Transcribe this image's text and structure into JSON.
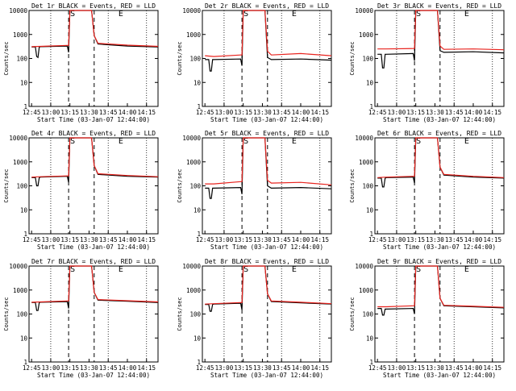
{
  "chart_data": [
    {
      "type": "line",
      "title": "Det 1r BLACK = Events, RED = LLD",
      "xlabel": "Start Time (03-Jan-07 12:44:00)",
      "ylabel": "Counts/sec",
      "xlim": [
        "12:43",
        "14:24"
      ],
      "ylim": [
        1,
        10000
      ],
      "yscale": "log",
      "x_ticks": [
        "12:45",
        "13:00",
        "13:15",
        "13:30",
        "13:45",
        "14:00",
        "14:15"
      ],
      "y_ticks": [
        "1",
        "10",
        "100",
        "1000",
        "10000"
      ],
      "markers": [
        "S",
        "E"
      ],
      "grid": "vertical dotted at 13:00, 13:45, 14:15",
      "vertical_dashed_lines": [
        "13:14",
        "13:34"
      ],
      "series": [
        {
          "name": "Events",
          "color": "#000000",
          "x": [
            "12:45",
            "12:48",
            "12:49",
            "12:50",
            "12:51",
            "12:52",
            "13:13",
            "13:14",
            "13:15",
            "13:19",
            "13:30",
            "13:32",
            "13:34",
            "13:37",
            "14:00",
            "14:24"
          ],
          "y": [
            300,
            300,
            120,
            110,
            300,
            310,
            330,
            180,
            10000,
            10000,
            10000,
            10000,
            900,
            400,
            330,
            300
          ]
        },
        {
          "name": "LLD",
          "color": "#e8231e",
          "x": [
            "12:45",
            "12:52",
            "13:13",
            "13:14",
            "13:15",
            "13:19",
            "13:30",
            "13:32",
            "13:34",
            "13:37",
            "14:00",
            "14:24"
          ],
          "y": [
            310,
            320,
            350,
            350,
            10000,
            10000,
            10000,
            10000,
            900,
            430,
            360,
            320
          ]
        }
      ]
    },
    {
      "type": "line",
      "title": "Det 2r BLACK = Events, RED = LLD",
      "xlabel": "Start Time (03-Jan-07 12:44:00)",
      "ylabel": "Counts/sec",
      "xlim": [
        "12:43",
        "14:24"
      ],
      "ylim": [
        1,
        10000
      ],
      "yscale": "log",
      "x_ticks": [
        "12:45",
        "13:00",
        "13:15",
        "13:30",
        "13:45",
        "14:00",
        "14:15"
      ],
      "y_ticks": [
        "1",
        "10",
        "100",
        "1000",
        "10000"
      ],
      "markers": [
        "S",
        "E"
      ],
      "grid": "vertical dotted at 13:00, 13:45, 14:15",
      "vertical_dashed_lines": [
        "13:14",
        "13:34"
      ],
      "series": [
        {
          "name": "Events",
          "color": "#000000",
          "x": [
            "12:45",
            "12:48",
            "12:49",
            "12:50",
            "12:51",
            "12:52",
            "13:13",
            "13:14",
            "13:15",
            "13:19",
            "13:30",
            "13:32",
            "13:34",
            "13:37",
            "14:00",
            "14:24"
          ],
          "y": [
            90,
            90,
            30,
            30,
            90,
            90,
            95,
            50,
            10000,
            10000,
            10000,
            10000,
            110,
            90,
            95,
            85
          ]
        },
        {
          "name": "LLD",
          "color": "#e8231e",
          "x": [
            "12:45",
            "12:52",
            "13:13",
            "13:14",
            "13:15",
            "13:19",
            "13:30",
            "13:32",
            "13:34",
            "13:37",
            "14:00",
            "14:24"
          ],
          "y": [
            130,
            120,
            140,
            140,
            10000,
            10000,
            10000,
            10000,
            200,
            140,
            160,
            130
          ]
        }
      ]
    },
    {
      "type": "line",
      "title": "Det 3r BLACK = Events, RED = LLD",
      "xlabel": "Start Time (03-Jan-07 12:44:00)",
      "ylabel": "Counts/sec",
      "xlim": [
        "12:43",
        "14:24"
      ],
      "ylim": [
        1,
        10000
      ],
      "yscale": "log",
      "x_ticks": [
        "12:45",
        "13:00",
        "13:15",
        "13:30",
        "13:45",
        "14:00",
        "14:15"
      ],
      "y_ticks": [
        "1",
        "10",
        "100",
        "1000",
        "10000"
      ],
      "markers": [
        "S",
        "E"
      ],
      "grid": "vertical dotted at 13:00, 13:45, 14:15",
      "vertical_dashed_lines": [
        "13:14",
        "13:34"
      ],
      "series": [
        {
          "name": "Events",
          "color": "#000000",
          "x": [
            "12:45",
            "12:48",
            "12:49",
            "12:50",
            "12:51",
            "12:52",
            "13:13",
            "13:14",
            "13:15",
            "13:19",
            "13:30",
            "13:32",
            "13:34",
            "13:37",
            "14:00",
            "14:24"
          ],
          "y": [
            150,
            150,
            40,
            40,
            150,
            150,
            160,
            80,
            10000,
            10000,
            10000,
            10000,
            210,
            180,
            190,
            170
          ]
        },
        {
          "name": "LLD",
          "color": "#e8231e",
          "x": [
            "12:45",
            "12:52",
            "13:13",
            "13:14",
            "13:15",
            "13:19",
            "13:30",
            "13:32",
            "13:34",
            "13:37",
            "14:00",
            "14:24"
          ],
          "y": [
            250,
            250,
            260,
            260,
            10000,
            10000,
            10000,
            10000,
            330,
            240,
            250,
            230
          ]
        }
      ]
    },
    {
      "type": "line",
      "title": "Det 4r BLACK = Events, RED = LLD",
      "xlabel": "Start Time (03-Jan-07 12:44:00)",
      "ylabel": "Counts/sec",
      "xlim": [
        "12:43",
        "14:24"
      ],
      "ylim": [
        1,
        10000
      ],
      "yscale": "log",
      "x_ticks": [
        "12:45",
        "13:00",
        "13:15",
        "13:30",
        "13:45",
        "14:00",
        "14:15"
      ],
      "y_ticks": [
        "1",
        "10",
        "100",
        "1000",
        "10000"
      ],
      "markers": [
        "S",
        "E"
      ],
      "grid": "vertical dotted at 13:00, 13:45, 14:15",
      "vertical_dashed_lines": [
        "13:14",
        "13:34"
      ],
      "series": [
        {
          "name": "Events",
          "color": "#000000",
          "x": [
            "12:45",
            "12:48",
            "12:49",
            "12:50",
            "12:51",
            "12:52",
            "13:13",
            "13:14",
            "13:15",
            "13:19",
            "13:30",
            "13:32",
            "13:34",
            "13:37",
            "14:00",
            "14:24"
          ],
          "y": [
            220,
            220,
            100,
            100,
            220,
            230,
            250,
            140,
            10000,
            10000,
            10000,
            10000,
            700,
            300,
            250,
            230
          ]
        },
        {
          "name": "LLD",
          "color": "#e8231e",
          "x": [
            "12:45",
            "12:52",
            "13:13",
            "13:14",
            "13:15",
            "13:19",
            "13:30",
            "13:32",
            "13:34",
            "13:37",
            "14:00",
            "14:24"
          ],
          "y": [
            230,
            240,
            260,
            260,
            10000,
            10000,
            10000,
            10000,
            700,
            320,
            270,
            240
          ]
        }
      ]
    },
    {
      "type": "line",
      "title": "Det 5r BLACK = Events, RED = LLD",
      "xlabel": "Start Time (03-Jan-07 12:44:00)",
      "ylabel": "Counts/sec",
      "xlim": [
        "12:43",
        "14:24"
      ],
      "ylim": [
        1,
        10000
      ],
      "yscale": "log",
      "x_ticks": [
        "12:45",
        "13:00",
        "13:15",
        "13:30",
        "13:45",
        "14:00",
        "14:15"
      ],
      "y_ticks": [
        "1",
        "10",
        "100",
        "1000",
        "10000"
      ],
      "markers": [
        "S",
        "E"
      ],
      "grid": "vertical dotted at 13:00, 13:45, 14:15",
      "vertical_dashed_lines": [
        "13:14",
        "13:34"
      ],
      "series": [
        {
          "name": "Events",
          "color": "#000000",
          "x": [
            "12:45",
            "12:48",
            "12:49",
            "12:50",
            "12:51",
            "12:52",
            "13:13",
            "13:14",
            "13:15",
            "13:19",
            "13:30",
            "13:32",
            "13:34",
            "13:37",
            "14:00",
            "14:24"
          ],
          "y": [
            80,
            80,
            30,
            30,
            80,
            80,
            85,
            45,
            10000,
            10000,
            10000,
            10000,
            100,
            80,
            85,
            75
          ]
        },
        {
          "name": "LLD",
          "color": "#e8231e",
          "x": [
            "12:45",
            "12:52",
            "13:13",
            "13:14",
            "13:15",
            "13:19",
            "13:30",
            "13:32",
            "13:34",
            "13:37",
            "14:00",
            "14:24"
          ],
          "y": [
            120,
            120,
            150,
            150,
            10000,
            10000,
            10000,
            10000,
            170,
            130,
            140,
            110
          ]
        }
      ]
    },
    {
      "type": "line",
      "title": "Det 6r BLACK = Events, RED = LLD",
      "xlabel": "Start Time (03-Jan-07 12:44:00)",
      "ylabel": "Counts/sec",
      "xlim": [
        "12:43",
        "14:24"
      ],
      "ylim": [
        1,
        10000
      ],
      "yscale": "log",
      "x_ticks": [
        "12:45",
        "13:00",
        "13:15",
        "13:30",
        "13:45",
        "14:00",
        "14:15"
      ],
      "y_ticks": [
        "1",
        "10",
        "100",
        "1000",
        "10000"
      ],
      "markers": [
        "S",
        "E"
      ],
      "grid": "vertical dotted at 13:00, 13:45, 14:15",
      "vertical_dashed_lines": [
        "13:14",
        "13:34"
      ],
      "series": [
        {
          "name": "Events",
          "color": "#000000",
          "x": [
            "12:45",
            "12:48",
            "12:49",
            "12:50",
            "12:51",
            "12:52",
            "13:13",
            "13:14",
            "13:15",
            "13:19",
            "13:30",
            "13:32",
            "13:34",
            "13:37",
            "14:00",
            "14:24"
          ],
          "y": [
            210,
            210,
            90,
            90,
            210,
            220,
            230,
            130,
            10000,
            10000,
            10000,
            10000,
            600,
            280,
            230,
            210
          ]
        },
        {
          "name": "LLD",
          "color": "#e8231e",
          "x": [
            "12:45",
            "12:52",
            "13:13",
            "13:14",
            "13:15",
            "13:19",
            "13:30",
            "13:32",
            "13:34",
            "13:37",
            "14:00",
            "14:24"
          ],
          "y": [
            220,
            230,
            250,
            250,
            10000,
            10000,
            10000,
            10000,
            600,
            300,
            250,
            220
          ]
        }
      ]
    },
    {
      "type": "line",
      "title": "Det 7r BLACK = Events, RED = LLD",
      "xlabel": "Start Time (03-Jan-07 12:44:00)",
      "ylabel": "Counts/sec",
      "xlim": [
        "12:43",
        "14:24"
      ],
      "ylim": [
        1,
        10000
      ],
      "yscale": "log",
      "x_ticks": [
        "12:45",
        "13:00",
        "13:15",
        "13:30",
        "13:45",
        "14:00",
        "14:15"
      ],
      "y_ticks": [
        "1",
        "10",
        "100",
        "1000",
        "10000"
      ],
      "markers": [
        "S",
        "E"
      ],
      "grid": "vertical dotted at 13:00, 13:45, 14:15",
      "vertical_dashed_lines": [
        "13:14",
        "13:34"
      ],
      "series": [
        {
          "name": "Events",
          "color": "#000000",
          "x": [
            "12:45",
            "12:48",
            "12:49",
            "12:50",
            "12:51",
            "12:52",
            "13:13",
            "13:14",
            "13:15",
            "13:19",
            "13:30",
            "13:32",
            "13:34",
            "13:37",
            "14:00",
            "14:24"
          ],
          "y": [
            300,
            300,
            140,
            140,
            300,
            310,
            330,
            170,
            10000,
            10000,
            10000,
            10000,
            800,
            380,
            340,
            300
          ]
        },
        {
          "name": "LLD",
          "color": "#e8231e",
          "x": [
            "12:45",
            "12:52",
            "13:13",
            "13:14",
            "13:15",
            "13:19",
            "13:30",
            "13:32",
            "13:34",
            "13:37",
            "14:00",
            "14:24"
          ],
          "y": [
            310,
            320,
            350,
            350,
            10000,
            10000,
            10000,
            10000,
            800,
            400,
            360,
            320
          ]
        }
      ]
    },
    {
      "type": "line",
      "title": "Det 8r BLACK = Events, RED = LLD",
      "xlabel": "Start Time (03-Jan-07 12:44:00)",
      "ylabel": "Counts/sec",
      "xlim": [
        "12:43",
        "14:24"
      ],
      "ylim": [
        1,
        10000
      ],
      "yscale": "log",
      "x_ticks": [
        "12:45",
        "13:00",
        "13:15",
        "13:30",
        "13:45",
        "14:00",
        "14:15"
      ],
      "y_ticks": [
        "1",
        "10",
        "100",
        "1000",
        "10000"
      ],
      "markers": [
        "S",
        "E"
      ],
      "grid": "vertical dotted at 13:00, 13:45, 14:15",
      "vertical_dashed_lines": [
        "13:14",
        "13:34"
      ],
      "series": [
        {
          "name": "Events",
          "color": "#000000",
          "x": [
            "12:45",
            "12:48",
            "12:49",
            "12:50",
            "12:51",
            "12:52",
            "13:13",
            "13:14",
            "13:15",
            "13:19",
            "13:30",
            "13:32",
            "13:34",
            "13:37",
            "14:00",
            "14:24"
          ],
          "y": [
            250,
            250,
            130,
            130,
            250,
            260,
            280,
            150,
            10000,
            10000,
            10000,
            10000,
            700,
            330,
            290,
            260
          ]
        },
        {
          "name": "LLD",
          "color": "#e8231e",
          "x": [
            "12:45",
            "12:52",
            "13:13",
            "13:14",
            "13:15",
            "13:19",
            "13:30",
            "13:32",
            "13:34",
            "13:37",
            "14:00",
            "14:24"
          ],
          "y": [
            260,
            270,
            300,
            300,
            10000,
            10000,
            10000,
            10000,
            700,
            350,
            310,
            270
          ]
        }
      ]
    },
    {
      "type": "line",
      "title": "Det 9r BLACK = Events, RED = LLD",
      "xlabel": "Start Time (03-Jan-07 12:44:00)",
      "ylabel": "Counts/sec",
      "xlim": [
        "12:43",
        "14:24"
      ],
      "ylim": [
        1,
        10000
      ],
      "yscale": "log",
      "x_ticks": [
        "12:45",
        "13:00",
        "13:15",
        "13:30",
        "13:45",
        "14:00",
        "14:15"
      ],
      "y_ticks": [
        "1",
        "10",
        "100",
        "1000",
        "10000"
      ],
      "markers": [
        "S",
        "E"
      ],
      "grid": "vertical dotted at 13:00, 13:45, 14:15",
      "vertical_dashed_lines": [
        "13:14",
        "13:34"
      ],
      "series": [
        {
          "name": "Events",
          "color": "#000000",
          "x": [
            "12:45",
            "12:48",
            "12:49",
            "12:50",
            "12:51",
            "12:52",
            "13:13",
            "13:14",
            "13:15",
            "13:19",
            "13:30",
            "13:32",
            "13:34",
            "13:37",
            "14:00",
            "14:24"
          ],
          "y": [
            170,
            170,
            90,
            90,
            160,
            160,
            170,
            100,
            10000,
            10000,
            10000,
            10000,
            450,
            220,
            200,
            180
          ]
        },
        {
          "name": "LLD",
          "color": "#e8231e",
          "x": [
            "12:45",
            "12:52",
            "13:13",
            "13:14",
            "13:15",
            "13:19",
            "13:30",
            "13:32",
            "13:34",
            "13:37",
            "14:00",
            "14:24"
          ],
          "y": [
            200,
            200,
            220,
            220,
            10000,
            10000,
            10000,
            10000,
            450,
            230,
            210,
            190
          ]
        }
      ]
    }
  ]
}
